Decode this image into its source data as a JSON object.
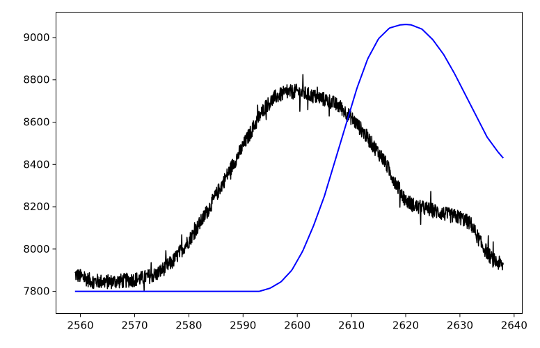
{
  "chart_data": {
    "type": "line",
    "title": "",
    "xlabel": "",
    "ylabel": "",
    "xlim": [
      2555.5,
      2641.5
    ],
    "ylim": [
      7695,
      9120
    ],
    "grid": false,
    "x_ticks": [
      2560,
      2570,
      2580,
      2590,
      2600,
      2610,
      2620,
      2630,
      2640
    ],
    "y_ticks": [
      7800,
      8000,
      8200,
      8400,
      8600,
      8800,
      9000
    ],
    "colors": {
      "noisy": "#000000",
      "model": "#0000ff"
    },
    "series": [
      {
        "style": "noisy",
        "color": "#000000",
        "noise_amplitude": 35,
        "x": [
          2559,
          2562,
          2565,
          2568,
          2571,
          2574,
          2577,
          2580,
          2583,
          2586,
          2589,
          2592,
          2594,
          2596,
          2598,
          2600,
          2602,
          2604,
          2606,
          2608,
          2610,
          2612,
          2614,
          2616,
          2618,
          2620,
          2622,
          2624,
          2626,
          2628,
          2630,
          2632,
          2634,
          2636,
          2638
        ],
        "y": [
          7880,
          7850,
          7845,
          7850,
          7860,
          7880,
          7940,
          8040,
          8160,
          8300,
          8440,
          8580,
          8670,
          8720,
          8740,
          8745,
          8730,
          8715,
          8700,
          8670,
          8620,
          8560,
          8490,
          8420,
          8320,
          8230,
          8200,
          8190,
          8175,
          8160,
          8150,
          8120,
          8020,
          7950,
          7920
        ]
      },
      {
        "style": "smooth",
        "color": "#0000ff",
        "x": [
          2559,
          2593,
          2595,
          2597,
          2599,
          2601,
          2603,
          2605,
          2607,
          2609,
          2611,
          2613,
          2615,
          2617,
          2619,
          2620,
          2621,
          2623,
          2625,
          2627,
          2629,
          2631,
          2633,
          2635,
          2637,
          2638
        ],
        "y": [
          7800,
          7800,
          7815,
          7845,
          7900,
          7990,
          8110,
          8250,
          8420,
          8590,
          8760,
          8900,
          8995,
          9045,
          9060,
          9062,
          9060,
          9040,
          8990,
          8920,
          8830,
          8730,
          8630,
          8530,
          8460,
          8430
        ]
      }
    ]
  }
}
